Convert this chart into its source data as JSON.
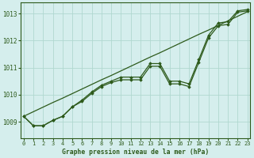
{
  "title": "Graphe pression niveau de la mer (hPa)",
  "background_color": "#d5eeed",
  "grid_color": "#b0d8d0",
  "line_color": "#2d5a1b",
  "x_ticks": [
    0,
    1,
    2,
    3,
    4,
    5,
    6,
    7,
    8,
    9,
    10,
    11,
    12,
    13,
    14,
    15,
    16,
    17,
    18,
    19,
    20,
    21,
    22,
    23
  ],
  "y_ticks": [
    1009,
    1010,
    1011,
    1012,
    1013
  ],
  "ylim": [
    1008.4,
    1013.4
  ],
  "xlim": [
    -0.3,
    23.3
  ],
  "line1_straight": [
    1009.2,
    1009.37,
    1009.54,
    1009.71,
    1009.87,
    1010.04,
    1010.21,
    1010.38,
    1010.55,
    1010.71,
    1010.88,
    1011.05,
    1011.22,
    1011.39,
    1011.55,
    1011.72,
    1011.89,
    1012.06,
    1012.23,
    1012.39,
    1012.56,
    1012.73,
    1012.9,
    1013.07
  ],
  "line2_bumpy": [
    1009.2,
    1008.85,
    1008.85,
    1009.05,
    1009.2,
    1009.55,
    1009.75,
    1010.05,
    1010.3,
    1010.45,
    1010.55,
    1010.55,
    1010.55,
    1011.05,
    1011.05,
    1010.4,
    1010.4,
    1010.3,
    1011.2,
    1012.1,
    1012.55,
    1012.6,
    1013.05,
    1013.1
  ],
  "line3_upper": [
    1009.2,
    1008.85,
    1008.85,
    1009.05,
    1009.2,
    1009.55,
    1009.8,
    1010.1,
    1010.35,
    1010.5,
    1010.65,
    1010.65,
    1010.65,
    1011.15,
    1011.15,
    1010.5,
    1010.5,
    1010.4,
    1011.3,
    1012.2,
    1012.65,
    1012.7,
    1013.1,
    1013.15
  ]
}
